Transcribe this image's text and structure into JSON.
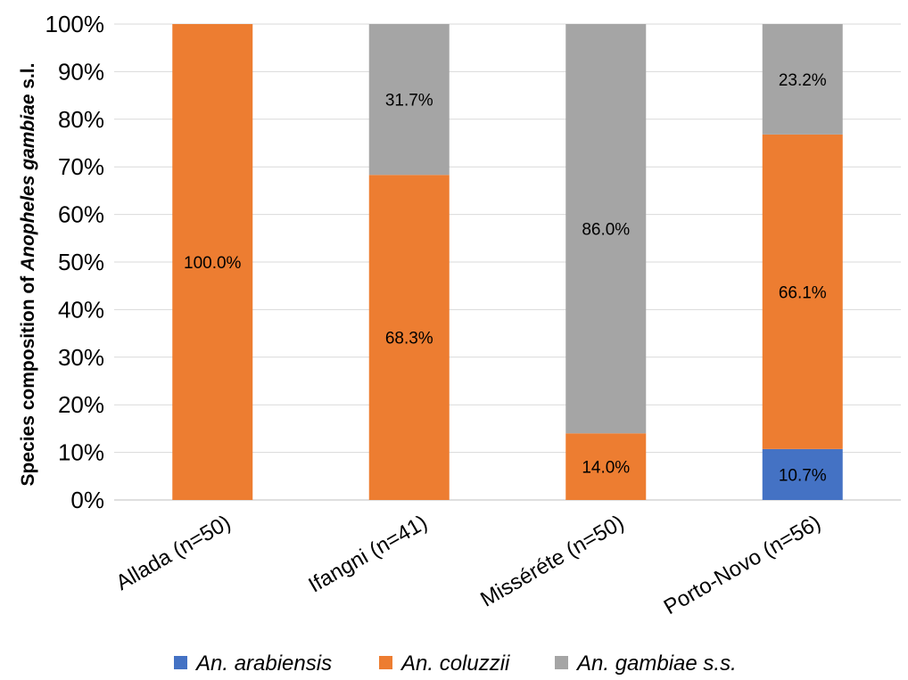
{
  "chart_data": {
    "type": "bar",
    "stacked": true,
    "categories": [
      "Allada (n=50)",
      "Ifangni (n=41)",
      "Misséréte (n=50)",
      "Porto-Novo (n=56)"
    ],
    "series": [
      {
        "name": "An. arabiensis",
        "color": "#4472C4",
        "values": [
          0,
          0,
          0,
          10.7
        ]
      },
      {
        "name": "An. coluzzii",
        "color": "#ED7D31",
        "values": [
          100.0,
          68.3,
          14.0,
          66.1
        ]
      },
      {
        "name": "An. gambiae s.s.",
        "color": "#A5A5A5",
        "values": [
          0,
          31.7,
          86.0,
          23.2
        ]
      }
    ],
    "data_labels": [
      [
        "",
        "",
        "",
        "10.7%"
      ],
      [
        "100.0%",
        "68.3%",
        "14.0%",
        "66.1%"
      ],
      [
        "",
        "31.7%",
        "86.0%",
        "23.2%"
      ]
    ],
    "ylabel_parts": [
      "Species composition of ",
      "Anopheles gambiae",
      " s.l."
    ],
    "ylim": [
      0,
      100
    ],
    "yticks": [
      "0%",
      "10%",
      "20%",
      "30%",
      "40%",
      "50%",
      "60%",
      "70%",
      "80%",
      "90%",
      "100%"
    ],
    "grid": true,
    "legend_position": "bottom"
  }
}
